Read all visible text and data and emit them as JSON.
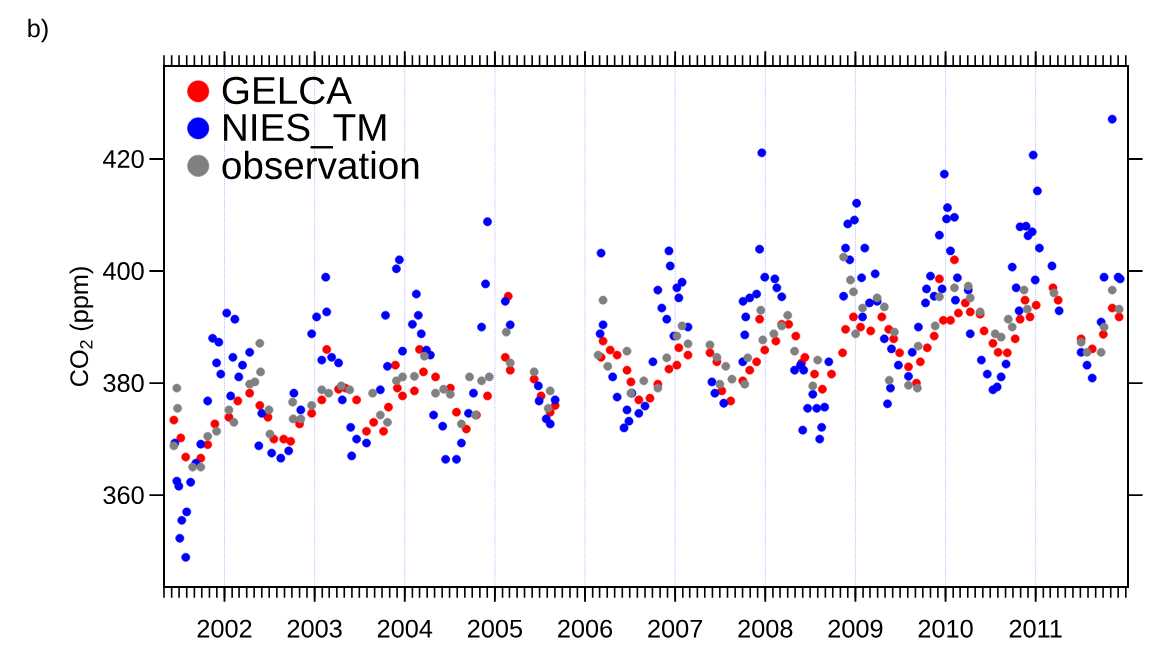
{
  "chart_data": {
    "type": "scatter",
    "ylabel": "CO$_{2}$ (ppm)",
    "annotations": [
      "b)"
    ],
    "xlim": [
      "2001-05-01",
      "2012-01-10"
    ],
    "ylim": [
      343.6,
      436.6
    ],
    "xticks": [
      {
        "value": "2002-01-01",
        "label": "2002"
      },
      {
        "value": "2003-01-01",
        "label": "2003"
      },
      {
        "value": "2004-01-01",
        "label": "2004"
      },
      {
        "value": "2005-01-01",
        "label": "2005"
      },
      {
        "value": "2006-01-01",
        "label": "2006"
      },
      {
        "value": "2007-01-01",
        "label": "2007"
      },
      {
        "value": "2008-01-01",
        "label": "2008"
      },
      {
        "value": "2009-01-01",
        "label": "2009"
      },
      {
        "value": "2010-01-01",
        "label": "2010"
      },
      {
        "value": "2011-01-01",
        "label": "2011"
      }
    ],
    "yticks": [
      360,
      380,
      400,
      420
    ],
    "grid": "x",
    "legend": "top left",
    "marker": "circle",
    "series": [
      {
        "name": "GELCA",
        "color": "#ff0000",
        "x": [
          "2001-06-10",
          "2001-07-08",
          "2001-07-28",
          "2001-09-27",
          "2001-10-25",
          "2001-11-23",
          "2002-01-19",
          "2002-02-24",
          "2002-04-13",
          "2002-05-24",
          "2002-06-26",
          "2002-07-20",
          "2002-08-29",
          "2002-09-26",
          "2002-11-01",
          "2002-12-20",
          "2003-01-30",
          "2003-02-19",
          "2003-04-08",
          "2003-05-06",
          "2003-06-20",
          "2003-07-30",
          "2003-08-28",
          "2003-10-07",
          "2003-10-27",
          "2003-11-24",
          "2003-12-02",
          "2003-12-23",
          "2004-02-09",
          "2004-03-01",
          "2004-03-17",
          "2004-05-05",
          "2004-07-04",
          "2004-07-29",
          "2004-09-07",
          "2004-10-18",
          "2004-12-02",
          "2005-02-24",
          "2005-02-12",
          "2005-03-04",
          "2005-06-09",
          "2005-07-07",
          "2005-08-13",
          "2005-09-02",
          "2006-03-07",
          "2006-03-15",
          "2006-04-13",
          "2006-05-11",
          "2006-06-20",
          "2006-07-06",
          "2006-08-07",
          "2006-09-21",
          "2006-10-23",
          "2006-12-07",
          "2007-01-08",
          "2007-01-16",
          "2007-02-22",
          "2007-05-22",
          "2007-06-19",
          "2007-07-09",
          "2007-08-14",
          "2007-10-02",
          "2007-10-30",
          "2007-11-27",
          "2007-12-09",
          "2007-12-30",
          "2008-02-13",
          "2008-03-08",
          "2008-04-05",
          "2008-05-04",
          "2008-06-10",
          "2008-05-28",
          "2008-07-19",
          "2008-08-20",
          "2008-09-26",
          "2008-11-10",
          "2008-11-22",
          "2008-12-24",
          "2009-01-22",
          "2009-03-04",
          "2009-04-18",
          "2009-05-16",
          "2009-06-05",
          "2009-06-29",
          "2009-08-04",
          "2009-09-05",
          "2009-09-21",
          "2009-10-19",
          "2009-11-16",
          "2009-12-07",
          "2009-12-23",
          "2010-01-21",
          "2010-02-06",
          "2010-02-22",
          "2010-03-22",
          "2010-04-11",
          "2010-05-21",
          "2010-06-06",
          "2010-07-12",
          "2010-08-02",
          "2010-09-08",
          "2010-10-10",
          "2010-10-30",
          "2010-11-19",
          "2010-12-09",
          "2011-01-03",
          "2011-03-12",
          "2011-04-02",
          "2011-07-04",
          "2011-08-18",
          "2011-10-02",
          "2011-11-07",
          "2011-12-05"
        ],
        "values": [
          373.4,
          370.2,
          366.8,
          366.6,
          369,
          372.7,
          373.9,
          376.8,
          378.2,
          376,
          373.9,
          370,
          370,
          369.6,
          372.7,
          374.6,
          377,
          386,
          378.9,
          379.1,
          377,
          371.4,
          373,
          371.4,
          375.7,
          383.2,
          379.1,
          377.7,
          378.6,
          386,
          382,
          381.1,
          379.1,
          374.8,
          371.8,
          374.3,
          377.7,
          395.5,
          384.6,
          382.3,
          380.7,
          377.7,
          374.8,
          376,
          384.6,
          387.5,
          385.9,
          385,
          382.3,
          380.2,
          377,
          377.3,
          379.8,
          382.5,
          383.2,
          386.3,
          385,
          385.4,
          383.8,
          378.6,
          376.8,
          380.4,
          382.3,
          383.8,
          391.4,
          385.9,
          387.5,
          390.5,
          390.5,
          388.4,
          384.6,
          383.6,
          381.6,
          378.9,
          381.6,
          385.4,
          389.6,
          391.8,
          390,
          389.3,
          391.8,
          389.6,
          387.9,
          385.4,
          382.9,
          380,
          383.8,
          386.3,
          388.4,
          398.6,
          391.2,
          391.2,
          402,
          392.5,
          394.3,
          392.7,
          392.3,
          389.3,
          387.1,
          385.5,
          385.4,
          387.9,
          391.4,
          394.8,
          391.8,
          393.9,
          397,
          394.8,
          387.9,
          386.1,
          388.7,
          393.4,
          391.8
        ]
      },
      {
        "name": "NIES_TM",
        "color": "#0000ff",
        "x": [
          "2001-06-14",
          "2001-06-22",
          "2001-06-30",
          "2001-07-12",
          "2001-07-04",
          "2001-07-28",
          "2001-08-01",
          "2001-08-17",
          "2001-09-07",
          "2001-09-27",
          "2001-10-25",
          "2001-11-14",
          "2001-12-09",
          "2001-11-30",
          "2001-12-17",
          "2002-01-10",
          "2002-02-12",
          "2002-01-26",
          "2002-02-04",
          "2002-03-15",
          "2002-04-13",
          "2002-02-28",
          "2002-06-01",
          "2002-05-20",
          "2002-07-11",
          "2002-08-17",
          "2002-09-18",
          "2002-10-09",
          "2002-11-06",
          "2002-12-20",
          "2003-01-09",
          "2003-02-15",
          "2003-02-19",
          "2003-01-30",
          "2003-03-11",
          "2003-04-08",
          "2003-04-23",
          "2003-05-27",
          "2003-06-20",
          "2003-05-31",
          "2003-07-30",
          "2003-09-24",
          "2003-10-15",
          "2003-10-23",
          "2003-11-28",
          "2003-12-10",
          "2003-12-23",
          "2004-02-01",
          "2004-02-17",
          "2004-02-25",
          "2004-03-08",
          "2004-03-29",
          "2004-04-14",
          "2004-04-27",
          "2004-06-03",
          "2004-06-15",
          "2004-07-29",
          "2004-08-18",
          "2004-09-16",
          "2004-10-06",
          "2004-11-08",
          "2004-11-24",
          "2004-12-02",
          "2005-02-12",
          "2005-03-04",
          "2005-06-26",
          "2005-06-29",
          "2005-07-28",
          "2005-08-13",
          "2005-09-02",
          "2006-03-07",
          "2006-03-15",
          "2006-03-03",
          "2006-04-23",
          "2006-05-11",
          "2006-06-08",
          "2006-06-28",
          "2006-06-20",
          "2006-07-10",
          "2006-08-07",
          "2006-09-01",
          "2006-10-03",
          "2006-10-23",
          "2006-11-08",
          "2006-11-28",
          "2006-12-07",
          "2006-12-12",
          "2007-01-08",
          "2007-01-29",
          "2007-01-16",
          "2007-02-22",
          "2006-12-27",
          "2007-05-30",
          "2007-06-11",
          "2007-07-17",
          "2007-10-02",
          "2007-10-10",
          "2007-10-14",
          "2007-10-03",
          "2007-10-30",
          "2007-11-27",
          "2007-12-09",
          "2007-12-18",
          "2007-12-30",
          "2008-02-09",
          "2008-02-17",
          "2008-03-08",
          "2008-04-29",
          "2008-05-23",
          "2008-06-05",
          "2008-06-01",
          "2008-06-21",
          "2008-07-12",
          "2008-07-28",
          "2008-08-09",
          "2008-08-17",
          "2008-08-29",
          "2008-09-15",
          "2008-11-14",
          "2008-11-22",
          "2008-12-01",
          "2008-12-09",
          "2008-12-28",
          "2009-01-06",
          "2009-01-26",
          "2009-02-08",
          "2009-01-30",
          "2009-02-27",
          "2009-03-22",
          "2009-03-30",
          "2009-04-28",
          "2009-05-11",
          "2009-05-27",
          "2009-05-23",
          "2009-06-24",
          "2009-08-04",
          "2009-08-19",
          "2009-09-13",
          "2009-10-12",
          "2009-10-16",
          "2009-11-01",
          "2009-11-16",
          "2009-12-07",
          "2009-12-18",
          "2009-12-27",
          "2010-01-05",
          "2010-01-09",
          "2010-01-21",
          "2010-02-06",
          "2010-02-18",
          "2010-02-10",
          "2010-04-03",
          "2010-04-11",
          "2010-05-26",
          "2010-06-19",
          "2010-07-12",
          "2010-07-29",
          "2010-08-14",
          "2010-09-03",
          "2010-09-28",
          "2010-10-14",
          "2010-10-26",
          "2010-10-30",
          "2010-11-23",
          "2010-12-01",
          "2010-12-18",
          "2010-12-22",
          "2010-12-30",
          "2011-01-08",
          "2011-01-16",
          "2011-03-08",
          "2011-04-06",
          "2011-07-04",
          "2011-07-28",
          "2011-08-18",
          "2011-09-23",
          "2011-10-05",
          "2011-11-07",
          "2011-12-01",
          "2011-12-09"
        ],
        "values": [
          369.3,
          362.5,
          361.6,
          355.5,
          352.3,
          348.9,
          357,
          362.3,
          365.7,
          369.1,
          376.8,
          388,
          387.3,
          383.6,
          381.6,
          392.5,
          391.4,
          377.7,
          384.6,
          383.2,
          385.5,
          381.1,
          374.6,
          368.8,
          367.5,
          366.6,
          367.9,
          378.2,
          375.2,
          388.8,
          391.8,
          398.9,
          392.7,
          384.1,
          384.6,
          383.6,
          377,
          372.1,
          370,
          367,
          369.3,
          378.8,
          392.1,
          383,
          400.4,
          402,
          385.7,
          390.5,
          395.9,
          392.1,
          388.8,
          385.9,
          385,
          374.3,
          372.3,
          366.4,
          366.4,
          369.3,
          374.6,
          378.2,
          390,
          397.7,
          408.8,
          394.6,
          390.4,
          379.5,
          376.8,
          373.6,
          372.7,
          377,
          403.2,
          390.4,
          388.8,
          381.1,
          377.5,
          372,
          373.2,
          375.2,
          378.2,
          374.6,
          375.9,
          383.8,
          396.6,
          393.4,
          391.4,
          403.6,
          400.9,
          397,
          398,
          395.2,
          390,
          388.4,
          380.2,
          378.2,
          376.4,
          383.8,
          388.6,
          391.8,
          394.6,
          395.2,
          395.9,
          403.9,
          421.1,
          398.9,
          398.6,
          397,
          395.4,
          382.3,
          383.2,
          382.3,
          371.6,
          375.5,
          378,
          375.5,
          370,
          372.1,
          375.7,
          383.8,
          395.5,
          404.1,
          408.4,
          402,
          409.1,
          412.1,
          398.8,
          404.1,
          391.8,
          394.3,
          399.5,
          394.6,
          387.9,
          376.3,
          386.1,
          379.1,
          383.2,
          381.2,
          385.5,
          390,
          394.3,
          396.8,
          399.1,
          395.5,
          406.4,
          396.8,
          417.3,
          409.3,
          411.3,
          403.6,
          409.6,
          398.8,
          394.8,
          396.6,
          388.8,
          384.1,
          381.6,
          378.8,
          379.3,
          381.1,
          383.4,
          400.7,
          397,
          392.9,
          407.9,
          408,
          406.3,
          407,
          420.7,
          398.4,
          414.3,
          404.1,
          400.9,
          392.9,
          385.5,
          383.2,
          380.9,
          390.9,
          398.9,
          427.1,
          398.9,
          398.6
        ]
      },
      {
        "name": "observation",
        "color": "#808080",
        "x": [
          "2001-06-22",
          "2001-06-25",
          "2001-06-10",
          "2001-08-25",
          "2001-09-27",
          "2001-10-25",
          "2001-11-30",
          "2002-01-19",
          "2002-02-08",
          "2002-04-13",
          "2002-05-04",
          "2002-05-24",
          "2002-05-27",
          "2002-06-30",
          "2002-07-04",
          "2002-10-04",
          "2002-10-06",
          "2002-11-06",
          "2002-12-20",
          "2003-01-30",
          "2003-02-27",
          "2003-04-19",
          "2003-05-23",
          "2003-08-24",
          "2003-09-24",
          "2003-10-23",
          "2003-11-28",
          "2003-12-23",
          "2004-02-09",
          "2004-03-21",
          "2004-05-05",
          "2004-06-07",
          "2004-07-04",
          "2004-08-18",
          "2004-09-20",
          "2004-10-14",
          "2004-11-08",
          "2004-12-09",
          "2005-02-16",
          "2005-03-04",
          "2005-06-09",
          "2005-08-05",
          "2005-08-13",
          "2006-03-15",
          "2006-02-23",
          "2006-04-03",
          "2006-06-20",
          "2006-07-06",
          "2006-08-27",
          "2006-10-23",
          "2006-11-28",
          "2007-01-08",
          "2007-01-29",
          "2007-02-22",
          "2007-05-22",
          "2007-06-19",
          "2007-07-01",
          "2007-07-25",
          "2007-08-19",
          "2007-10-10",
          "2007-10-22",
          "2007-12-14",
          "2007-12-22",
          "2008-02-05",
          "2008-03-08",
          "2008-04-01",
          "2008-04-29",
          "2008-07-12",
          "2008-08-01",
          "2008-11-14",
          "2008-12-12",
          "2008-12-24",
          "2009-01-02",
          "2009-01-30",
          "2009-03-30",
          "2009-04-28",
          "2009-06-08",
          "2009-05-18",
          "2009-08-04",
          "2009-09-09",
          "2009-09-12",
          "2009-11-20",
          "2009-12-07",
          "2010-02-06",
          "2010-04-03",
          "2010-04-11",
          "2010-05-21",
          "2010-07-21",
          "2010-08-14",
          "2010-09-12",
          "2010-09-28",
          "2010-11-15",
          "2010-11-28",
          "2011-03-16",
          "2011-07-04",
          "2011-07-28",
          "2011-09-23",
          "2011-10-05",
          "2011-11-07",
          "2011-12-05"
        ],
        "values": [
          379.1,
          375.5,
          368.8,
          365,
          365,
          370.5,
          371.4,
          375.2,
          373,
          379.8,
          380.2,
          387.1,
          382,
          375.2,
          370.9,
          376.6,
          373.6,
          373.6,
          376,
          378.8,
          378.2,
          379.5,
          378.8,
          378.2,
          374.3,
          373,
          380.4,
          381.1,
          381.2,
          384.8,
          378.2,
          378.9,
          378,
          372.7,
          381.1,
          374.3,
          380.4,
          381.1,
          389.1,
          383.6,
          382,
          375.5,
          378.6,
          394.8,
          385,
          383,
          385.7,
          378.2,
          380.4,
          379.1,
          384.5,
          388.4,
          390.2,
          387,
          386.8,
          384.6,
          379.8,
          383,
          380.7,
          379.8,
          384.5,
          393,
          387.7,
          388.8,
          390.2,
          392.1,
          385.7,
          379.5,
          384.1,
          402.5,
          398.4,
          396.3,
          388.8,
          393.4,
          395.2,
          393.6,
          389.1,
          380.5,
          379.6,
          379.1,
          386.6,
          390.2,
          395.4,
          397,
          397.3,
          395.2,
          392.7,
          388.8,
          388.2,
          391.4,
          390,
          396.6,
          393.2,
          396.1,
          387.3,
          385.5,
          385.5,
          390,
          396.6,
          393.2
        ]
      }
    ]
  }
}
